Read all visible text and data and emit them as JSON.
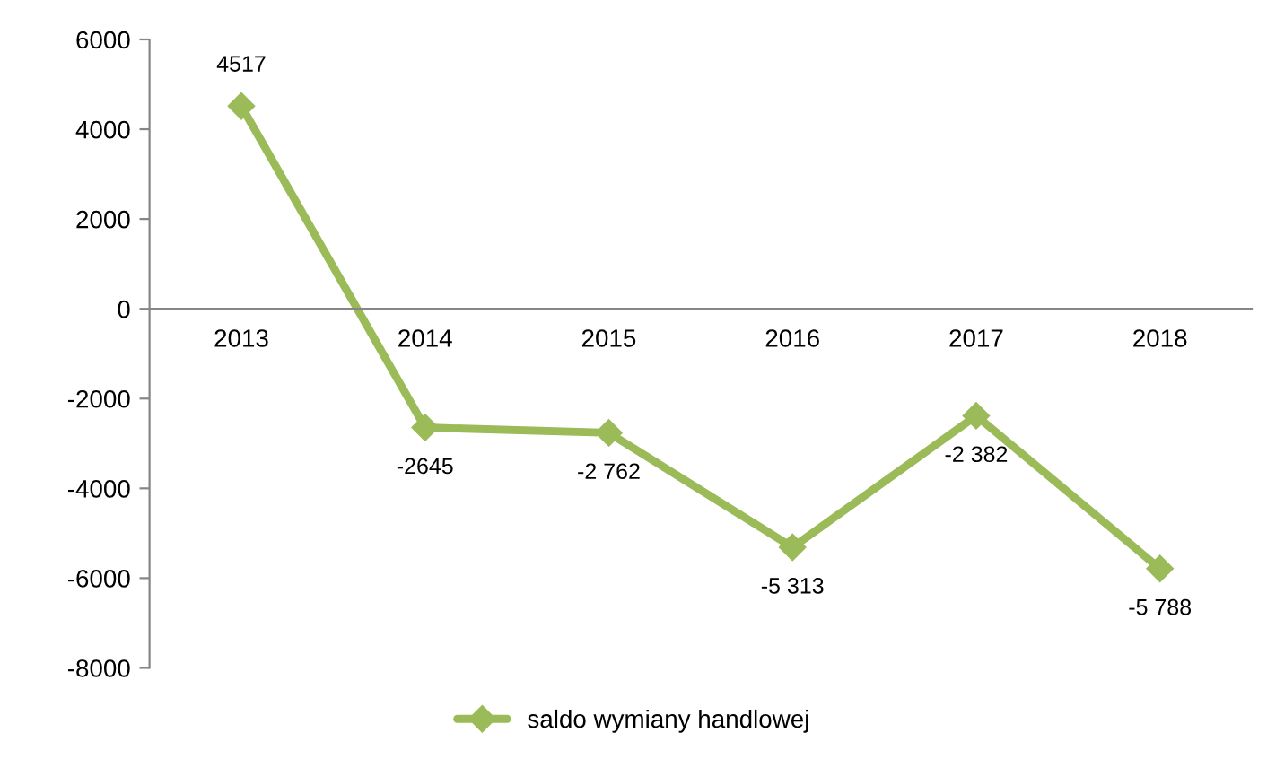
{
  "chart_data": {
    "type": "line",
    "categories": [
      "2013",
      "2014",
      "2015",
      "2016",
      "2017",
      "2018"
    ],
    "series": [
      {
        "name": "saldo wymiany handlowej",
        "color": "#9bbb59",
        "values": [
          4517,
          -2645,
          -2762,
          -5313,
          -2382,
          -5788
        ],
        "value_labels": [
          "4517",
          "-2645",
          "-2 762",
          "-5 313",
          "-2 382",
          "-5 788"
        ]
      }
    ],
    "ylim": [
      -8000,
      6000
    ],
    "yticks": [
      -8000,
      -6000,
      -4000,
      -2000,
      0,
      2000,
      4000,
      6000
    ],
    "grid": false,
    "legend": "bottom",
    "marker": "diamond",
    "line_style": "solid"
  }
}
